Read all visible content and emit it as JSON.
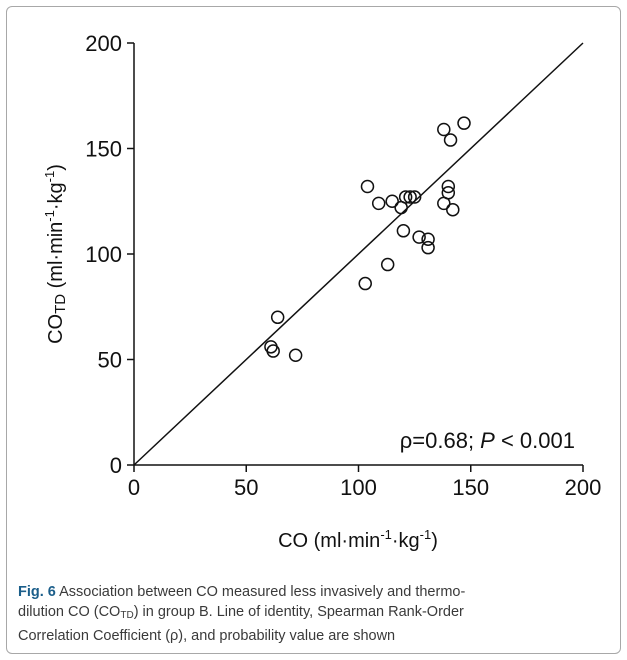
{
  "chart_data": {
    "type": "scatter",
    "xlabel": {
      "main": "CO (ml·min",
      "sup1": "-1",
      "mid": "·kg",
      "sup2": "-1",
      "end": ")"
    },
    "ylabel": {
      "main": "CO",
      "sub": "TD",
      "rest": " (ml·min",
      "sup1": "-1",
      "mid": "·kg",
      "sup2": "-1",
      "end": ")"
    },
    "xlim": [
      0,
      200
    ],
    "ylim": [
      0,
      200
    ],
    "xticks": [
      "0",
      "50",
      "100",
      "150",
      "200"
    ],
    "yticks": [
      "0",
      "50",
      "100",
      "150",
      "200"
    ],
    "grid": false,
    "identity_line": true,
    "annotation": {
      "rho": "ρ=0.68; ",
      "p": "P",
      "rest": " < 0.001"
    },
    "points": [
      {
        "x": 61,
        "y": 56
      },
      {
        "x": 62,
        "y": 54
      },
      {
        "x": 64,
        "y": 70
      },
      {
        "x": 72,
        "y": 52
      },
      {
        "x": 103,
        "y": 86
      },
      {
        "x": 104,
        "y": 132
      },
      {
        "x": 109,
        "y": 124
      },
      {
        "x": 113,
        "y": 95
      },
      {
        "x": 115,
        "y": 125
      },
      {
        "x": 119,
        "y": 122
      },
      {
        "x": 120,
        "y": 111
      },
      {
        "x": 121,
        "y": 127
      },
      {
        "x": 123,
        "y": 127
      },
      {
        "x": 125,
        "y": 127
      },
      {
        "x": 127,
        "y": 108
      },
      {
        "x": 131,
        "y": 107
      },
      {
        "x": 131,
        "y": 103
      },
      {
        "x": 138,
        "y": 159
      },
      {
        "x": 138,
        "y": 124
      },
      {
        "x": 140,
        "y": 132
      },
      {
        "x": 140,
        "y": 129
      },
      {
        "x": 141,
        "y": 154
      },
      {
        "x": 142,
        "y": 121
      },
      {
        "x": 147,
        "y": 162
      }
    ]
  },
  "caption": {
    "fig_label": "Fig. 6",
    "text_1": " Association between CO measured less invasively and thermo-",
    "text_2": "dilution CO (CO",
    "text_2_sub": "TD",
    "text_2_end": ") in group B. Line of identity, Spearman Rank-Order",
    "text_3": "Correlation Coefficient (ρ), and probability value are shown"
  }
}
